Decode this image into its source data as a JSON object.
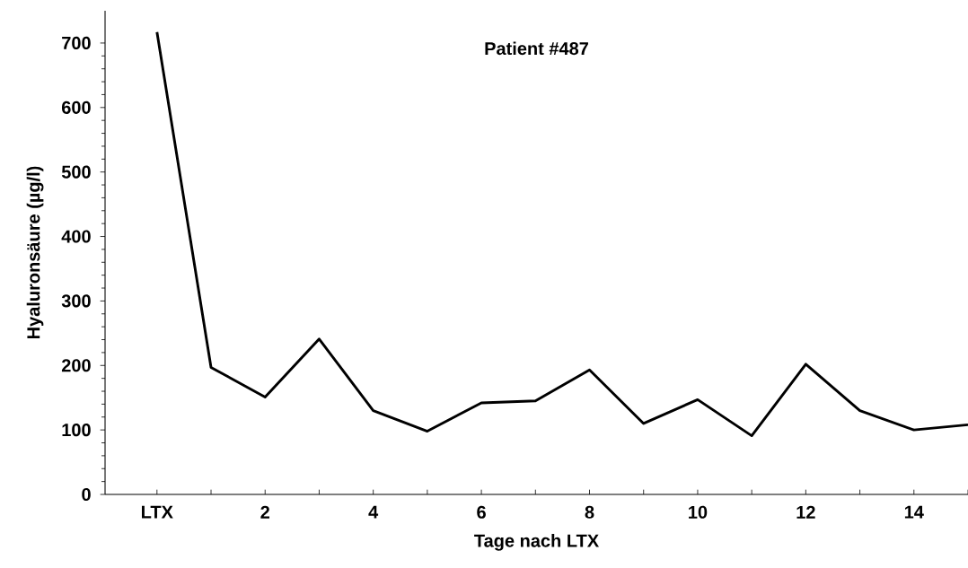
{
  "chart_data": {
    "type": "line",
    "title": "Patient #487",
    "xlabel": "Tage nach LTX",
    "ylabel": "Hyaluronsäure (µg/l)",
    "x": [
      0,
      1,
      2,
      3,
      4,
      5,
      6,
      7,
      8,
      9,
      10,
      11,
      12,
      13,
      14,
      15
    ],
    "series": [
      {
        "color": "#000000",
        "values": [
          717,
          197,
          151,
          241,
          130,
          98,
          142,
          145,
          193,
          110,
          147,
          91,
          202,
          130,
          100,
          108
        ]
      }
    ],
    "xlim": [
      -0.96,
      15
    ],
    "xticks": [
      {
        "value": 0,
        "label": "LTX"
      },
      {
        "value": 1,
        "label": null
      },
      2,
      {
        "value": 3,
        "label": null
      },
      4,
      {
        "value": 5,
        "label": null
      },
      6,
      {
        "value": 7,
        "label": null
      },
      8,
      {
        "value": 9,
        "label": null
      },
      10,
      {
        "value": 11,
        "label": null
      },
      12,
      {
        "value": 13,
        "label": null
      },
      14,
      {
        "value": 15,
        "label": null
      }
    ],
    "ylim": [
      0,
      750
    ],
    "yticks": [
      0,
      100,
      200,
      300,
      400,
      500,
      600,
      700
    ],
    "grid": false,
    "marker": "none",
    "line_style": "solid"
  }
}
